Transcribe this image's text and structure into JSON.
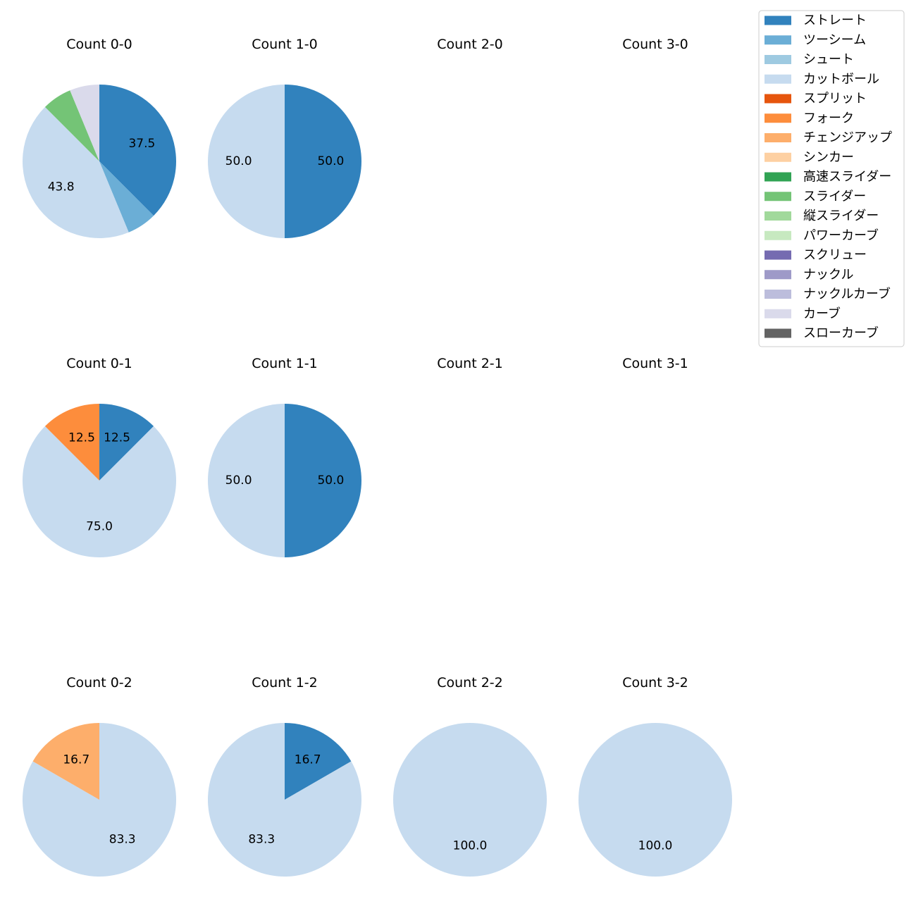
{
  "chart_data": {
    "type": "pie",
    "legend": {
      "placement": "top-right",
      "entries": [
        {
          "label": "ストレート",
          "color": "#3182bd"
        },
        {
          "label": "ツーシーム",
          "color": "#6baed6"
        },
        {
          "label": "シュート",
          "color": "#9ecae1"
        },
        {
          "label": "カットボール",
          "color": "#c6dbef"
        },
        {
          "label": "スプリット",
          "color": "#e6550d"
        },
        {
          "label": "フォーク",
          "color": "#fd8d3c"
        },
        {
          "label": "チェンジアップ",
          "color": "#fdae6b"
        },
        {
          "label": "シンカー",
          "color": "#fdd0a2"
        },
        {
          "label": "高速スライダー",
          "color": "#31a354"
        },
        {
          "label": "スライダー",
          "color": "#74c476"
        },
        {
          "label": "縦スライダー",
          "color": "#a1d99b"
        },
        {
          "label": "パワーカーブ",
          "color": "#c7e9c0"
        },
        {
          "label": "スクリュー",
          "color": "#756bb1"
        },
        {
          "label": "ナックル",
          "color": "#9e9ac8"
        },
        {
          "label": "ナックルカーブ",
          "color": "#bcbddc"
        },
        {
          "label": "カーブ",
          "color": "#dadaeb"
        },
        {
          "label": "スローカーブ",
          "color": "#636363"
        }
      ]
    },
    "pies": [
      {
        "title": "Count 0-0",
        "slices": [
          {
            "pitch": "ストレート",
            "value": 37.5,
            "label": "37.5"
          },
          {
            "pitch": "ツーシーム",
            "value": 6.25,
            "label": ""
          },
          {
            "pitch": "カットボール",
            "value": 43.75,
            "label": "43.8"
          },
          {
            "pitch": "スライダー",
            "value": 6.25,
            "label": ""
          },
          {
            "pitch": "カーブ",
            "value": 6.25,
            "label": ""
          }
        ]
      },
      {
        "title": "Count 1-0",
        "slices": [
          {
            "pitch": "ストレート",
            "value": 50.0,
            "label": "50.0"
          },
          {
            "pitch": "カットボール",
            "value": 50.0,
            "label": "50.0"
          }
        ]
      },
      {
        "title": "Count 2-0",
        "slices": []
      },
      {
        "title": "Count 3-0",
        "slices": []
      },
      {
        "title": "Count 0-1",
        "slices": [
          {
            "pitch": "ストレート",
            "value": 12.5,
            "label": "12.5"
          },
          {
            "pitch": "カットボール",
            "value": 75.0,
            "label": "75.0"
          },
          {
            "pitch": "フォーク",
            "value": 12.5,
            "label": "12.5"
          }
        ]
      },
      {
        "title": "Count 1-1",
        "slices": [
          {
            "pitch": "ストレート",
            "value": 50.0,
            "label": "50.0"
          },
          {
            "pitch": "カットボール",
            "value": 50.0,
            "label": "50.0"
          }
        ]
      },
      {
        "title": "Count 2-1",
        "slices": []
      },
      {
        "title": "Count 3-1",
        "slices": []
      },
      {
        "title": "Count 0-2",
        "slices": [
          {
            "pitch": "カットボール",
            "value": 83.33,
            "label": "83.3"
          },
          {
            "pitch": "チェンジアップ",
            "value": 16.67,
            "label": "16.7"
          }
        ]
      },
      {
        "title": "Count 1-2",
        "slices": [
          {
            "pitch": "ストレート",
            "value": 16.67,
            "label": "16.7"
          },
          {
            "pitch": "カットボール",
            "value": 83.33,
            "label": "83.3"
          }
        ]
      },
      {
        "title": "Count 2-2",
        "slices": [
          {
            "pitch": "カットボール",
            "value": 100.0,
            "label": "100.0"
          }
        ]
      },
      {
        "title": "Count 3-2",
        "slices": [
          {
            "pitch": "カットボール",
            "value": 100.0,
            "label": "100.0"
          }
        ]
      }
    ]
  }
}
